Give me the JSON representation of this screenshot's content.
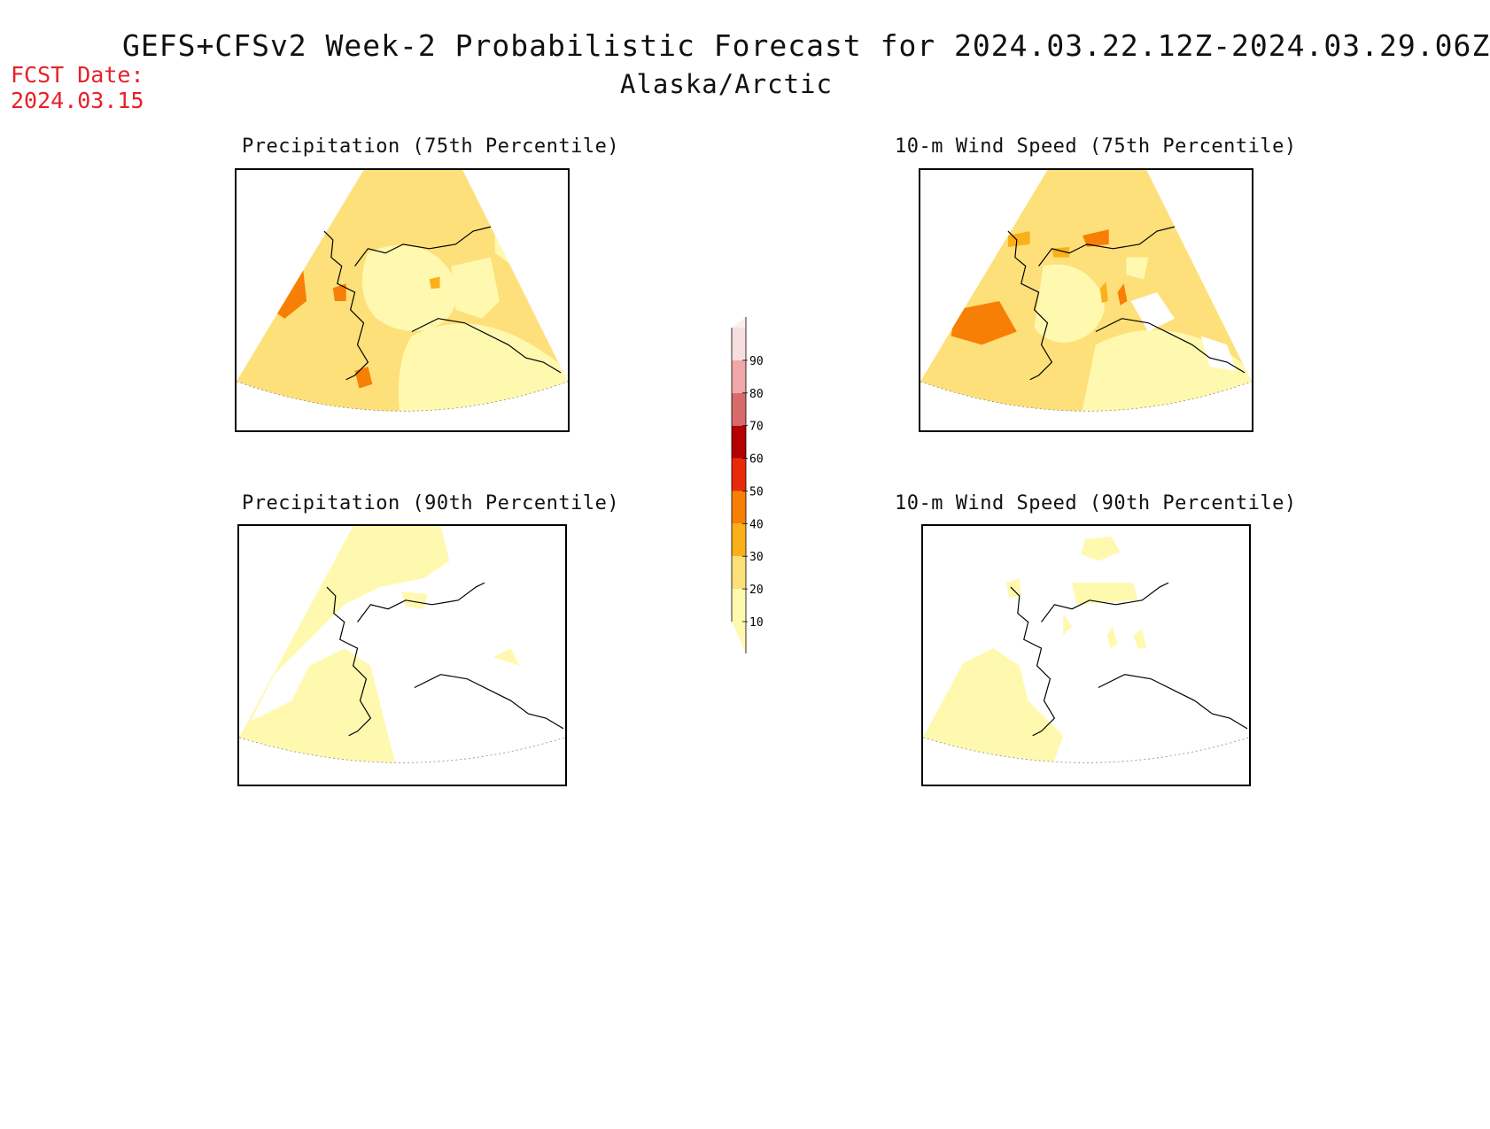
{
  "header": {
    "title": "GEFS+CFSv2 Week-2 Probabilistic Forecast for 2024.03.22.12Z-2024.03.29.06Z",
    "region": "Alaska/Arctic",
    "fcst_date_label": "FCST Date:",
    "fcst_date_value": "2024.03.15"
  },
  "panels": [
    {
      "title": "Precipitation (75th Percentile)"
    },
    {
      "title": "10-m Wind Speed (75th Percentile)"
    },
    {
      "title": "Precipitation (90th Percentile)"
    },
    {
      "title": "10-m Wind Speed (90th Percentile)"
    }
  ],
  "colorbar": {
    "levels": [
      "10",
      "20",
      "30",
      "40",
      "50",
      "60",
      "70",
      "80",
      "90"
    ],
    "colors": [
      "#fff9b0",
      "#fde07a",
      "#fbb019",
      "#f87f05",
      "#e82a0a",
      "#b40000",
      "#d96a6a",
      "#f0a7a7",
      "#f8dede"
    ]
  },
  "legend_colors": {
    "light_yellow": "#fff9b0",
    "yellow": "#fde07a",
    "orange": "#fbb019",
    "dark_orange": "#f87f05"
  }
}
